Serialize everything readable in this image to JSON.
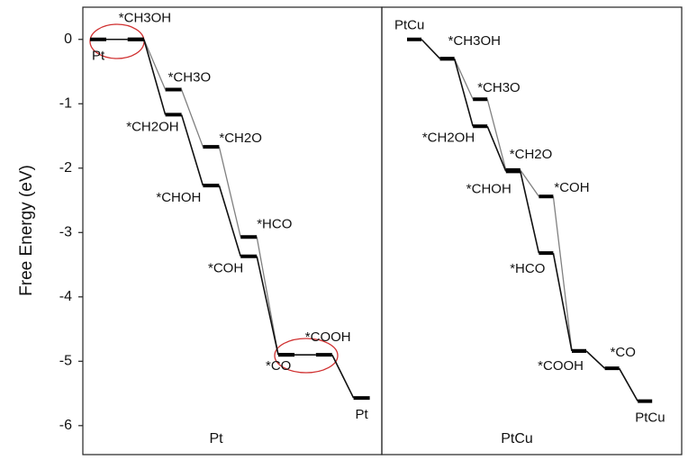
{
  "chart_data": [
    {
      "type": "energy_profile",
      "label": "Pt",
      "y_label": "Free Energy (eV)",
      "ylim": [
        -6.45,
        0.5
      ],
      "yticks": [
        0,
        -1,
        -2,
        -3,
        -4,
        -5,
        -6
      ],
      "series": [
        {
          "color": "#111111",
          "values": [
            0,
            0,
            -1.17,
            -2.27,
            -3.37,
            -4.9,
            -4.9,
            -5.57
          ],
          "labels": [
            "Pt",
            "*CH3OH",
            "*CH2OH",
            "*CHOH",
            "*COH",
            "*CO",
            "*COOH",
            "Pt"
          ]
        },
        {
          "color": "#808080",
          "values": [
            null,
            0,
            -0.78,
            -1.67,
            -3.07,
            -4.9,
            null,
            null
          ],
          "labels": [
            null,
            null,
            "*CH3O",
            "*CH2O",
            "*HCO",
            null,
            null,
            null
          ]
        }
      ]
    },
    {
      "type": "energy_profile",
      "label": "PtCu",
      "ylim": [
        -6.45,
        0.5
      ],
      "series": [
        {
          "color": "#111111",
          "values": [
            0,
            -0.3,
            -1.35,
            -2.05,
            -3.32,
            -4.84,
            -5.11,
            -5.62
          ],
          "labels": [
            "PtCu",
            "*CH3OH",
            "*CH2OH",
            "*CHOH",
            "*HCO",
            "*COOH",
            "*CO",
            "PtCu"
          ]
        },
        {
          "color": "#808080",
          "values": [
            null,
            -0.3,
            -0.93,
            -2.03,
            -2.44,
            -4.84,
            null,
            null
          ],
          "labels": [
            null,
            null,
            "*CH3O",
            "*CH2O",
            "*COH",
            null,
            null,
            null
          ]
        }
      ]
    }
  ]
}
